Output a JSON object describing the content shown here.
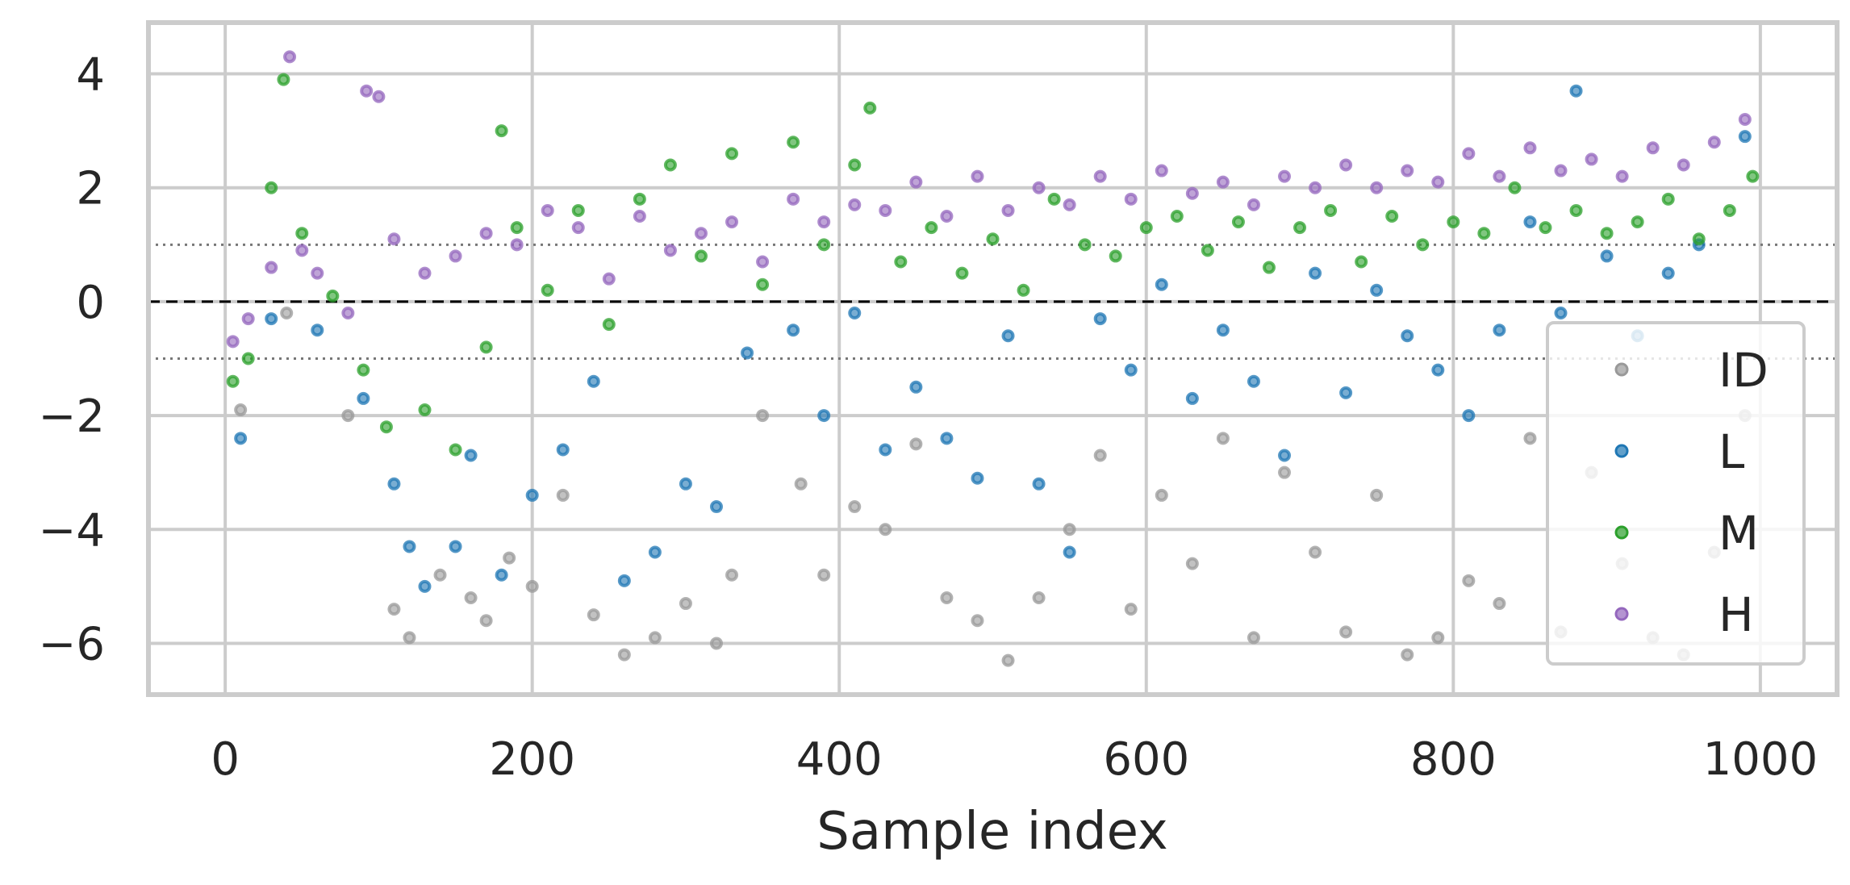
{
  "chart_data": {
    "type": "scatter",
    "title": "",
    "xlabel": "Sample index",
    "ylabel": "",
    "xlim": [
      -50,
      1050
    ],
    "ylim": [
      -6.9,
      4.9
    ],
    "xticks": [
      0,
      200,
      400,
      600,
      800,
      1000
    ],
    "yticks": [
      -6,
      -4,
      -2,
      0,
      2,
      4
    ],
    "grid": true,
    "reference_lines": [
      {
        "y": 0,
        "style": "dashed",
        "color": "#000000"
      },
      {
        "y": 1,
        "style": "dotted",
        "color": "#777777"
      },
      {
        "y": -1,
        "style": "dotted",
        "color": "#777777"
      }
    ],
    "legend_position": "lower-right",
    "series": [
      {
        "name": "ID",
        "color": "#999999",
        "points": [
          [
            10,
            -1.9
          ],
          [
            40,
            -0.2
          ],
          [
            80,
            -2.0
          ],
          [
            110,
            -5.4
          ],
          [
            120,
            -5.9
          ],
          [
            140,
            -4.8
          ],
          [
            160,
            -5.2
          ],
          [
            170,
            -5.6
          ],
          [
            185,
            -4.5
          ],
          [
            200,
            -5.0
          ],
          [
            220,
            -3.4
          ],
          [
            240,
            -5.5
          ],
          [
            260,
            -6.2
          ],
          [
            280,
            -5.9
          ],
          [
            300,
            -5.3
          ],
          [
            320,
            -6.0
          ],
          [
            330,
            -4.8
          ],
          [
            350,
            -2.0
          ],
          [
            375,
            -3.2
          ],
          [
            390,
            -4.8
          ],
          [
            410,
            -3.6
          ],
          [
            430,
            -4.0
          ],
          [
            450,
            -2.5
          ],
          [
            470,
            -5.2
          ],
          [
            490,
            -5.6
          ],
          [
            510,
            -6.3
          ],
          [
            530,
            -5.2
          ],
          [
            550,
            -4.0
          ],
          [
            570,
            -2.7
          ],
          [
            590,
            -5.4
          ],
          [
            610,
            -3.4
          ],
          [
            630,
            -4.6
          ],
          [
            650,
            -2.4
          ],
          [
            670,
            -5.9
          ],
          [
            690,
            -3.0
          ],
          [
            710,
            -4.4
          ],
          [
            730,
            -5.8
          ],
          [
            750,
            -3.4
          ],
          [
            770,
            -6.2
          ],
          [
            790,
            -5.9
          ],
          [
            810,
            -4.9
          ],
          [
            830,
            -5.3
          ],
          [
            850,
            -2.4
          ],
          [
            870,
            -5.8
          ],
          [
            890,
            -3.0
          ],
          [
            910,
            -4.6
          ],
          [
            930,
            -5.9
          ],
          [
            950,
            -6.2
          ],
          [
            970,
            -4.4
          ],
          [
            990,
            -2.0
          ]
        ]
      },
      {
        "name": "L",
        "color": "#1f77b4",
        "points": [
          [
            10,
            -2.4
          ],
          [
            30,
            -0.3
          ],
          [
            60,
            -0.5
          ],
          [
            90,
            -1.7
          ],
          [
            110,
            -3.2
          ],
          [
            120,
            -4.3
          ],
          [
            130,
            -5.0
          ],
          [
            150,
            -4.3
          ],
          [
            160,
            -2.7
          ],
          [
            180,
            -4.8
          ],
          [
            200,
            -3.4
          ],
          [
            220,
            -2.6
          ],
          [
            240,
            -1.4
          ],
          [
            260,
            -4.9
          ],
          [
            280,
            -4.4
          ],
          [
            300,
            -3.2
          ],
          [
            320,
            -3.6
          ],
          [
            340,
            -0.9
          ],
          [
            370,
            -0.5
          ],
          [
            390,
            -2.0
          ],
          [
            410,
            -0.2
          ],
          [
            430,
            -2.6
          ],
          [
            450,
            -1.5
          ],
          [
            470,
            -2.4
          ],
          [
            490,
            -3.1
          ],
          [
            510,
            -0.6
          ],
          [
            530,
            -3.2
          ],
          [
            550,
            -4.4
          ],
          [
            570,
            -0.3
          ],
          [
            590,
            -1.2
          ],
          [
            610,
            0.3
          ],
          [
            630,
            -1.7
          ],
          [
            650,
            -0.5
          ],
          [
            670,
            -1.4
          ],
          [
            690,
            -2.7
          ],
          [
            710,
            0.5
          ],
          [
            730,
            -1.6
          ],
          [
            750,
            0.2
          ],
          [
            770,
            -0.6
          ],
          [
            790,
            -1.2
          ],
          [
            810,
            -2.0
          ],
          [
            830,
            -0.5
          ],
          [
            850,
            1.4
          ],
          [
            870,
            -0.2
          ],
          [
            880,
            3.7
          ],
          [
            900,
            0.8
          ],
          [
            920,
            -0.6
          ],
          [
            940,
            0.5
          ],
          [
            960,
            1.0
          ],
          [
            990,
            2.9
          ]
        ]
      },
      {
        "name": "M",
        "color": "#2ca02c",
        "points": [
          [
            5,
            -1.4
          ],
          [
            15,
            -1.0
          ],
          [
            30,
            2.0
          ],
          [
            38,
            3.9
          ],
          [
            50,
            1.2
          ],
          [
            70,
            0.1
          ],
          [
            90,
            -1.2
          ],
          [
            105,
            -2.2
          ],
          [
            130,
            -1.9
          ],
          [
            150,
            -2.6
          ],
          [
            170,
            -0.8
          ],
          [
            180,
            3.0
          ],
          [
            190,
            1.3
          ],
          [
            210,
            0.2
          ],
          [
            230,
            1.6
          ],
          [
            250,
            -0.4
          ],
          [
            270,
            1.8
          ],
          [
            290,
            2.4
          ],
          [
            310,
            0.8
          ],
          [
            330,
            2.6
          ],
          [
            350,
            0.3
          ],
          [
            370,
            2.8
          ],
          [
            390,
            1.0
          ],
          [
            410,
            2.4
          ],
          [
            420,
            3.4
          ],
          [
            440,
            0.7
          ],
          [
            460,
            1.3
          ],
          [
            480,
            0.5
          ],
          [
            500,
            1.1
          ],
          [
            520,
            0.2
          ],
          [
            540,
            1.8
          ],
          [
            560,
            1.0
          ],
          [
            580,
            0.8
          ],
          [
            600,
            1.3
          ],
          [
            620,
            1.5
          ],
          [
            640,
            0.9
          ],
          [
            660,
            1.4
          ],
          [
            680,
            0.6
          ],
          [
            700,
            1.3
          ],
          [
            720,
            1.6
          ],
          [
            740,
            0.7
          ],
          [
            760,
            1.5
          ],
          [
            780,
            1.0
          ],
          [
            800,
            1.4
          ],
          [
            820,
            1.2
          ],
          [
            840,
            2.0
          ],
          [
            860,
            1.3
          ],
          [
            880,
            1.6
          ],
          [
            900,
            1.2
          ],
          [
            920,
            1.4
          ],
          [
            940,
            1.8
          ],
          [
            960,
            1.1
          ],
          [
            980,
            1.6
          ],
          [
            995,
            2.2
          ]
        ]
      },
      {
        "name": "H",
        "color": "#9467bd",
        "points": [
          [
            5,
            -0.7
          ],
          [
            15,
            -0.3
          ],
          [
            30,
            0.6
          ],
          [
            42,
            4.3
          ],
          [
            50,
            0.9
          ],
          [
            60,
            0.5
          ],
          [
            80,
            -0.2
          ],
          [
            92,
            3.7
          ],
          [
            100,
            3.6
          ],
          [
            110,
            1.1
          ],
          [
            130,
            0.5
          ],
          [
            150,
            0.8
          ],
          [
            170,
            1.2
          ],
          [
            190,
            1.0
          ],
          [
            210,
            1.6
          ],
          [
            230,
            1.3
          ],
          [
            250,
            0.4
          ],
          [
            270,
            1.5
          ],
          [
            290,
            0.9
          ],
          [
            310,
            1.2
          ],
          [
            330,
            1.4
          ],
          [
            350,
            0.7
          ],
          [
            370,
            1.8
          ],
          [
            390,
            1.4
          ],
          [
            410,
            1.7
          ],
          [
            430,
            1.6
          ],
          [
            450,
            2.1
          ],
          [
            470,
            1.5
          ],
          [
            490,
            2.2
          ],
          [
            510,
            1.6
          ],
          [
            530,
            2.0
          ],
          [
            550,
            1.7
          ],
          [
            570,
            2.2
          ],
          [
            590,
            1.8
          ],
          [
            610,
            2.3
          ],
          [
            630,
            1.9
          ],
          [
            650,
            2.1
          ],
          [
            670,
            1.7
          ],
          [
            690,
            2.2
          ],
          [
            710,
            2.0
          ],
          [
            730,
            2.4
          ],
          [
            750,
            2.0
          ],
          [
            770,
            2.3
          ],
          [
            790,
            2.1
          ],
          [
            810,
            2.6
          ],
          [
            830,
            2.2
          ],
          [
            850,
            2.7
          ],
          [
            870,
            2.3
          ],
          [
            890,
            2.5
          ],
          [
            910,
            2.2
          ],
          [
            930,
            2.7
          ],
          [
            950,
            2.4
          ],
          [
            970,
            2.8
          ],
          [
            990,
            3.2
          ]
        ]
      }
    ]
  }
}
